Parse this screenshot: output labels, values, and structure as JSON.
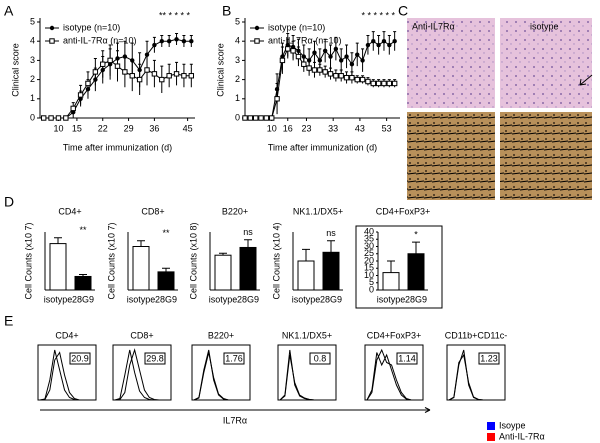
{
  "panel_labels": [
    "A",
    "B",
    "C",
    "D",
    "E"
  ],
  "histology": {
    "labels": [
      "Anti-IL7Rα",
      "isotype"
    ]
  },
  "chart_data": [
    {
      "type": "line",
      "ylabel": "Clinical score",
      "xlabel": "Time after immunization (d)",
      "xlim": [
        5,
        47
      ],
      "xticks": [
        10,
        15,
        22,
        29,
        36,
        45
      ],
      "ylim": [
        0,
        5
      ],
      "yticks": [
        0,
        1,
        2,
        3,
        4,
        5
      ],
      "annotation": "** * * * *",
      "x": [
        6,
        8,
        10,
        12,
        14,
        16,
        18,
        20,
        22,
        24,
        26,
        28,
        30,
        32,
        34,
        36,
        38,
        40,
        42,
        44,
        46
      ],
      "series": [
        {
          "name": "isotype (n=10)",
          "color": "#000000",
          "marker": "circle",
          "values": [
            0,
            0,
            0,
            0,
            0.3,
            1,
            1.5,
            2,
            2.5,
            2.8,
            3.1,
            3.2,
            3,
            2.5,
            3.3,
            3.8,
            4,
            4,
            4.1,
            4,
            4
          ],
          "errors": [
            0,
            0,
            0,
            0,
            0.3,
            0.4,
            0.5,
            0.6,
            0.7,
            0.8,
            0.8,
            0.8,
            0.9,
            0.9,
            0.7,
            0.4,
            0.3,
            0.3,
            0.3,
            0.3,
            0.3
          ]
        },
        {
          "name": "anti-IL-7Rα (n=10)",
          "color": "#000000",
          "marker": "square",
          "values": [
            0,
            0,
            0,
            0,
            0.5,
            1.2,
            1.8,
            2.4,
            2.8,
            3,
            2.7,
            2.4,
            2.2,
            2,
            2.5,
            2.3,
            2,
            2.2,
            2.3,
            2.2,
            2.2
          ],
          "errors": [
            0,
            0,
            0,
            0,
            0.3,
            0.5,
            0.6,
            0.7,
            0.7,
            0.8,
            0.8,
            0.8,
            0.8,
            0.8,
            0.8,
            0.7,
            0.7,
            0.6,
            0.6,
            0.6,
            0.6
          ]
        }
      ]
    },
    {
      "type": "line",
      "ylabel": "Clinical score",
      "xlabel": "Time after immunization (d)",
      "xlim": [
        0,
        58
      ],
      "xticks": [
        10,
        16,
        23,
        33,
        43,
        53
      ],
      "ylim": [
        0,
        5
      ],
      "yticks": [
        0,
        1,
        2,
        3,
        4,
        5
      ],
      "annotation": "* * * * * *",
      "x": [
        0,
        2,
        4,
        6,
        8,
        10,
        12,
        14,
        16,
        18,
        20,
        22,
        24,
        26,
        28,
        30,
        32,
        34,
        36,
        38,
        40,
        42,
        44,
        46,
        48,
        50,
        52,
        54,
        56
      ],
      "series": [
        {
          "name": "isotype (n=10)",
          "color": "#000000",
          "marker": "circle",
          "values": [
            0,
            0,
            0,
            0,
            0,
            0,
            1.5,
            3.2,
            3.8,
            3.7,
            3.5,
            3.2,
            3,
            3.4,
            3,
            3.5,
            3.2,
            3.6,
            3,
            3.2,
            2.8,
            3.3,
            3,
            3.8,
            4,
            3.8,
            4,
            3.8,
            4
          ],
          "errors": [
            0,
            0,
            0,
            0,
            0,
            0,
            0.8,
            0.7,
            0.6,
            0.6,
            0.6,
            0.6,
            0.6,
            0.6,
            0.6,
            0.6,
            0.6,
            0.6,
            0.6,
            0.6,
            0.6,
            0.6,
            0.6,
            0.5,
            0.5,
            0.5,
            0.5,
            0.5,
            0.5
          ]
        },
        {
          "name": "anti-IL-7Rα (n=10)",
          "color": "#000000",
          "marker": "square",
          "values": [
            0,
            0,
            0,
            0,
            0,
            0,
            1,
            3,
            3.6,
            3.5,
            3.2,
            2.8,
            2.6,
            2.5,
            2.5,
            2.4,
            2.3,
            2.2,
            2.2,
            2.1,
            2.1,
            2,
            2,
            1.9,
            1.8,
            1.8,
            1.8,
            1.8,
            1.8
          ],
          "errors": [
            0,
            0,
            0,
            0,
            0,
            0,
            0.8,
            0.7,
            0.5,
            0.5,
            0.5,
            0.4,
            0.4,
            0.4,
            0.3,
            0.3,
            0.3,
            0.3,
            0.3,
            0.3,
            0.3,
            0.2,
            0.2,
            0.2,
            0.2,
            0.2,
            0.2,
            0.2,
            0.2
          ]
        }
      ]
    },
    {
      "type": "bar-panels",
      "categories": [
        "isotype",
        "28G9"
      ],
      "colors": [
        "#ffffff",
        "#000000"
      ],
      "panels": [
        {
          "title": "CD4+",
          "ylabel": "Cell Counts (x10 7)",
          "ylim": [
            0,
            15
          ],
          "values": [
            12,
            3.5
          ],
          "errors": [
            1.5,
            0.5
          ],
          "annotation": "**"
        },
        {
          "title": "CD8+",
          "ylabel": "Cell Counts (x10 7)",
          "ylim": [
            0,
            8
          ],
          "values": [
            6,
            2.5
          ],
          "errors": [
            0.8,
            0.5
          ],
          "annotation": "**"
        },
        {
          "title": "B220+",
          "ylabel": "Cell Counts (x10 8)",
          "ylim": [
            0,
            3
          ],
          "values": [
            1.8,
            2.2
          ],
          "errors": [
            0.1,
            0.4
          ],
          "annotation": "ns"
        },
        {
          "title": "NK1.1/DX5+",
          "ylabel": "Cell Counts (x10 4)",
          "ylim": [
            0,
            2
          ],
          "values": [
            1.0,
            1.3
          ],
          "errors": [
            0.4,
            0.4
          ],
          "annotation": "ns"
        },
        {
          "title": "CD4+FoxP3+",
          "ylim": [
            0,
            40
          ],
          "yticks": [
            0,
            5,
            10,
            15,
            20,
            25,
            30,
            35,
            40
          ],
          "values": [
            12,
            25
          ],
          "errors": [
            8,
            8
          ],
          "annotation": "*"
        }
      ]
    },
    {
      "type": "flow",
      "xlabel": "IL7Rα",
      "ylim": [
        0,
        110
      ],
      "series": [
        {
          "name": "Isoype",
          "color": "#0000ff"
        },
        {
          "name": "Anti-IL-7Rα",
          "color": "#ff0000"
        }
      ],
      "panels": [
        {
          "title": "CD4+",
          "gate": 20.9,
          "values": [
            [
              0,
              2,
              40,
              100,
              60,
              20,
              5,
              1,
              0,
              0,
              0,
              0
            ],
            [
              0,
              1,
              20,
              80,
              95,
              50,
              15,
              3,
              0,
              0,
              0,
              0
            ]
          ]
        },
        {
          "title": "CD8+",
          "gate": 29.8,
          "values": [
            [
              0,
              3,
              50,
              100,
              55,
              18,
              5,
              1,
              0,
              0,
              0,
              0
            ],
            [
              0,
              1,
              15,
              70,
              100,
              60,
              20,
              5,
              1,
              0,
              0,
              0
            ]
          ]
        },
        {
          "title": "B220+",
          "gate": 1.76,
          "values": [
            [
              0,
              5,
              60,
              100,
              40,
              10,
              2,
              0,
              0,
              0,
              0,
              0
            ],
            [
              0,
              4,
              55,
              95,
              45,
              12,
              3,
              0,
              0,
              0,
              0,
              0
            ]
          ]
        },
        {
          "title": "NK1.1/DX5+",
          "gate": 0.8,
          "values": [
            [
              0,
              10,
              100,
              30,
              8,
              3,
              1,
              0,
              0,
              0,
              0,
              0
            ],
            [
              0,
              8,
              90,
              35,
              10,
              4,
              1,
              0,
              0,
              0,
              0,
              0
            ]
          ]
        },
        {
          "title": "CD4+FoxP3+",
          "gate": 1.14,
          "values": [
            [
              0,
              20,
              95,
              70,
              90,
              60,
              30,
              10,
              2,
              0,
              0,
              0
            ],
            [
              0,
              15,
              80,
              100,
              75,
              70,
              40,
              15,
              3,
              0,
              0,
              0
            ]
          ]
        },
        {
          "title": "CD11b+CD11c-",
          "gate": 1.23,
          "values": [
            [
              0,
              5,
              70,
              100,
              30,
              5,
              1,
              0,
              0,
              0,
              0,
              0
            ],
            [
              0,
              6,
              75,
              90,
              35,
              6,
              1,
              0,
              0,
              0,
              0,
              0
            ]
          ]
        }
      ]
    }
  ]
}
